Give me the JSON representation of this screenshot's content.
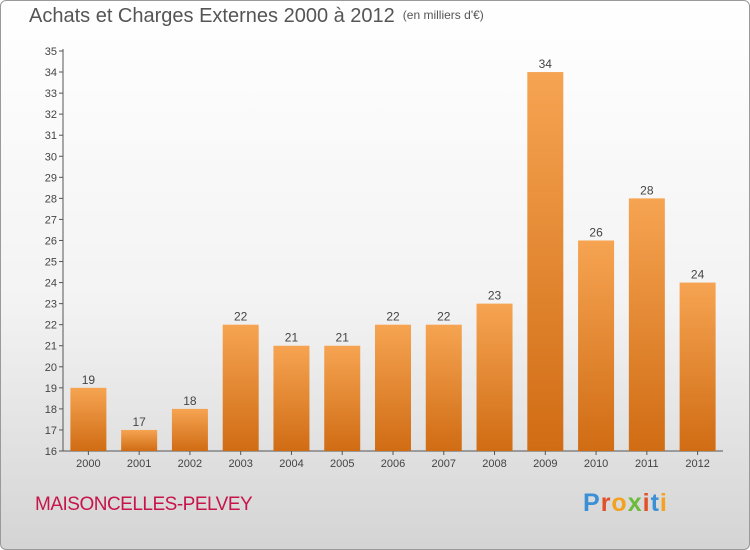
{
  "title": "Achats et Charges Externes 2000 à 2012",
  "unit": "(en milliers d'€)",
  "location": "MAISONCELLES-PELVEY",
  "logo": {
    "letters": [
      "P",
      "r",
      "o",
      "x",
      "i",
      "t",
      "i"
    ],
    "colors": [
      "#3a8fd6",
      "#e0512a",
      "#f3a11f",
      "#6cbb3c",
      "#e0512a",
      "#3a8fd6",
      "#f3a11f"
    ]
  },
  "colors": {
    "bar_top": "#f6a452",
    "bar_bottom": "#d06c14",
    "title": "#555555",
    "location": "#c7154b"
  },
  "chart_data": {
    "type": "bar",
    "categories": [
      "2000",
      "2001",
      "2002",
      "2003",
      "2004",
      "2005",
      "2006",
      "2007",
      "2008",
      "2009",
      "2010",
      "2011",
      "2012"
    ],
    "values": [
      19,
      17,
      18,
      22,
      21,
      21,
      22,
      22,
      23,
      34,
      26,
      28,
      24
    ],
    "ylim": [
      16,
      35
    ],
    "yticks": [
      "16",
      "17",
      "18",
      "19",
      "20",
      "21",
      "22",
      "23",
      "24",
      "25",
      "26",
      "27",
      "28",
      "29",
      "30",
      "31",
      "32",
      "33",
      "34",
      "35"
    ],
    "grid": false
  }
}
